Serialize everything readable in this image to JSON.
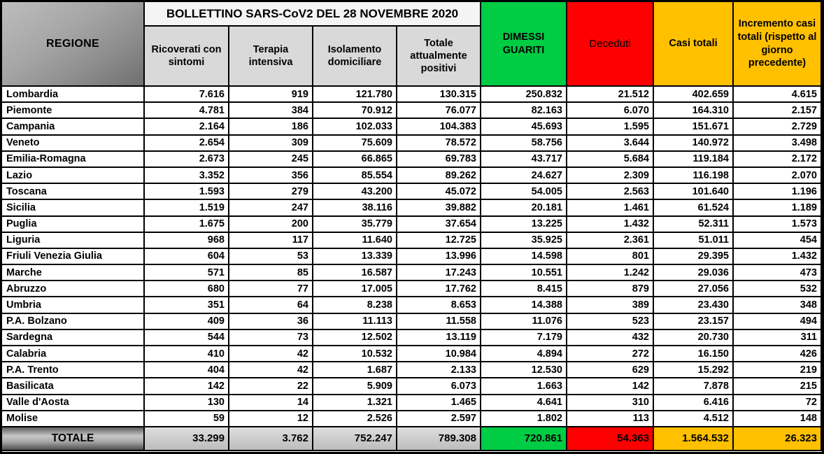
{
  "title": "BOLLETTINO SARS-CoV2 DEL 28 NOVEMBRE 2020",
  "colors": {
    "green": "#00cc44",
    "red": "#ff0000",
    "gold": "#ffc000",
    "header_gray": "#d9d9d9",
    "grid_line": "#000000"
  },
  "columns": [
    {
      "label": "REGIONE"
    },
    {
      "label": "Ricoverati con sintomi"
    },
    {
      "label": "Terapia intensiva"
    },
    {
      "label": "Isolamento domiciliare"
    },
    {
      "label": "Totale attualmente positivi"
    },
    {
      "label": "DIMESSI GUARITI",
      "bg": "#00cc44"
    },
    {
      "label": "Deceduti",
      "bg": "#ff0000"
    },
    {
      "label": "Casi totali",
      "bg": "#ffc000"
    },
    {
      "label": "Incremento casi totali (rispetto al giorno precedente)",
      "bg": "#ffc000"
    }
  ],
  "rows": [
    {
      "region": "Lombardia",
      "values": [
        "7.616",
        "919",
        "121.780",
        "130.315",
        "250.832",
        "21.512",
        "402.659",
        "4.615"
      ]
    },
    {
      "region": "Piemonte",
      "values": [
        "4.781",
        "384",
        "70.912",
        "76.077",
        "82.163",
        "6.070",
        "164.310",
        "2.157"
      ]
    },
    {
      "region": "Campania",
      "values": [
        "2.164",
        "186",
        "102.033",
        "104.383",
        "45.693",
        "1.595",
        "151.671",
        "2.729"
      ]
    },
    {
      "region": "Veneto",
      "values": [
        "2.654",
        "309",
        "75.609",
        "78.572",
        "58.756",
        "3.644",
        "140.972",
        "3.498"
      ]
    },
    {
      "region": "Emilia-Romagna",
      "values": [
        "2.673",
        "245",
        "66.865",
        "69.783",
        "43.717",
        "5.684",
        "119.184",
        "2.172"
      ]
    },
    {
      "region": "Lazio",
      "values": [
        "3.352",
        "356",
        "85.554",
        "89.262",
        "24.627",
        "2.309",
        "116.198",
        "2.070"
      ]
    },
    {
      "region": "Toscana",
      "values": [
        "1.593",
        "279",
        "43.200",
        "45.072",
        "54.005",
        "2.563",
        "101.640",
        "1.196"
      ]
    },
    {
      "region": "Sicilia",
      "values": [
        "1.519",
        "247",
        "38.116",
        "39.882",
        "20.181",
        "1.461",
        "61.524",
        "1.189"
      ]
    },
    {
      "region": "Puglia",
      "values": [
        "1.675",
        "200",
        "35.779",
        "37.654",
        "13.225",
        "1.432",
        "52.311",
        "1.573"
      ]
    },
    {
      "region": "Liguria",
      "values": [
        "968",
        "117",
        "11.640",
        "12.725",
        "35.925",
        "2.361",
        "51.011",
        "454"
      ]
    },
    {
      "region": "Friuli Venezia Giulia",
      "values": [
        "604",
        "53",
        "13.339",
        "13.996",
        "14.598",
        "801",
        "29.395",
        "1.432"
      ]
    },
    {
      "region": "Marche",
      "values": [
        "571",
        "85",
        "16.587",
        "17.243",
        "10.551",
        "1.242",
        "29.036",
        "473"
      ]
    },
    {
      "region": "Abruzzo",
      "values": [
        "680",
        "77",
        "17.005",
        "17.762",
        "8.415",
        "879",
        "27.056",
        "532"
      ]
    },
    {
      "region": "Umbria",
      "values": [
        "351",
        "64",
        "8.238",
        "8.653",
        "14.388",
        "389",
        "23.430",
        "348"
      ]
    },
    {
      "region": "P.A. Bolzano",
      "values": [
        "409",
        "36",
        "11.113",
        "11.558",
        "11.076",
        "523",
        "23.157",
        "494"
      ]
    },
    {
      "region": "Sardegna",
      "values": [
        "544",
        "73",
        "12.502",
        "13.119",
        "7.179",
        "432",
        "20.730",
        "311"
      ]
    },
    {
      "region": "Calabria",
      "values": [
        "410",
        "42",
        "10.532",
        "10.984",
        "4.894",
        "272",
        "16.150",
        "426"
      ]
    },
    {
      "region": "P.A. Trento",
      "values": [
        "404",
        "42",
        "1.687",
        "2.133",
        "12.530",
        "629",
        "15.292",
        "219"
      ]
    },
    {
      "region": "Basilicata",
      "values": [
        "142",
        "22",
        "5.909",
        "6.073",
        "1.663",
        "142",
        "7.878",
        "215"
      ]
    },
    {
      "region": "Valle d'Aosta",
      "values": [
        "130",
        "14",
        "1.321",
        "1.465",
        "4.641",
        "310",
        "6.416",
        "72"
      ]
    },
    {
      "region": "Molise",
      "values": [
        "59",
        "12",
        "2.526",
        "2.597",
        "1.802",
        "113",
        "4.512",
        "148"
      ]
    }
  ],
  "totals": {
    "label": "TOTALE",
    "values": [
      "33.299",
      "3.762",
      "752.247",
      "789.308",
      "720.861",
      "54.363",
      "1.564.532",
      "26.323"
    ]
  },
  "chart_data": {
    "type": "table",
    "title": "BOLLETTINO SARS-CoV2 DEL 28 NOVEMBRE 2020",
    "columns": [
      "REGIONE",
      "Ricoverati con sintomi",
      "Terapia intensiva",
      "Isolamento domiciliare",
      "Totale attualmente positivi",
      "DIMESSI GUARITI",
      "Deceduti",
      "Casi totali",
      "Incremento casi totali (rispetto al giorno precedente)"
    ],
    "rows": [
      [
        "Lombardia",
        7616,
        919,
        121780,
        130315,
        250832,
        21512,
        402659,
        4615
      ],
      [
        "Piemonte",
        4781,
        384,
        70912,
        76077,
        82163,
        6070,
        164310,
        2157
      ],
      [
        "Campania",
        2164,
        186,
        102033,
        104383,
        45693,
        1595,
        151671,
        2729
      ],
      [
        "Veneto",
        2654,
        309,
        75609,
        78572,
        58756,
        3644,
        140972,
        3498
      ],
      [
        "Emilia-Romagna",
        2673,
        245,
        66865,
        69783,
        43717,
        5684,
        119184,
        2172
      ],
      [
        "Lazio",
        3352,
        356,
        85554,
        89262,
        24627,
        2309,
        116198,
        2070
      ],
      [
        "Toscana",
        1593,
        279,
        43200,
        45072,
        54005,
        2563,
        101640,
        1196
      ],
      [
        "Sicilia",
        1519,
        247,
        38116,
        39882,
        20181,
        1461,
        61524,
        1189
      ],
      [
        "Puglia",
        1675,
        200,
        35779,
        37654,
        13225,
        1432,
        52311,
        1573
      ],
      [
        "Liguria",
        968,
        117,
        11640,
        12725,
        35925,
        2361,
        51011,
        454
      ],
      [
        "Friuli Venezia Giulia",
        604,
        53,
        13339,
        13996,
        14598,
        801,
        29395,
        1432
      ],
      [
        "Marche",
        571,
        85,
        16587,
        17243,
        10551,
        1242,
        29036,
        473
      ],
      [
        "Abruzzo",
        680,
        77,
        17005,
        17762,
        8415,
        879,
        27056,
        532
      ],
      [
        "Umbria",
        351,
        64,
        8238,
        8653,
        14388,
        389,
        23430,
        348
      ],
      [
        "P.A. Bolzano",
        409,
        36,
        11113,
        11558,
        11076,
        523,
        23157,
        494
      ],
      [
        "Sardegna",
        544,
        73,
        12502,
        13119,
        7179,
        432,
        20730,
        311
      ],
      [
        "Calabria",
        410,
        42,
        10532,
        10984,
        4894,
        272,
        16150,
        426
      ],
      [
        "P.A. Trento",
        404,
        42,
        1687,
        2133,
        12530,
        629,
        15292,
        219
      ],
      [
        "Basilicata",
        142,
        22,
        5909,
        6073,
        1663,
        142,
        7878,
        215
      ],
      [
        "Valle d'Aosta",
        130,
        14,
        1321,
        1465,
        4641,
        310,
        6416,
        72
      ],
      [
        "Molise",
        59,
        12,
        2526,
        2597,
        1802,
        113,
        4512,
        148
      ]
    ],
    "totals_row": [
      "TOTALE",
      33299,
      3762,
      752247,
      789308,
      720861,
      54363,
      1564532,
      26323
    ]
  }
}
